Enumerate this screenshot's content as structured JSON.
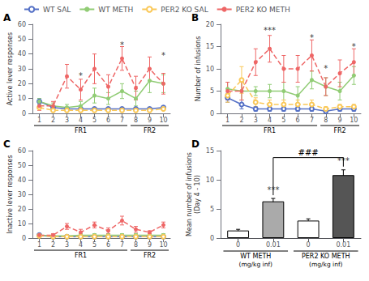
{
  "chart_data": [
    {
      "type": "line",
      "title": "A",
      "y_label": "Active lever responses",
      "x": [
        1,
        2,
        3,
        4,
        5,
        6,
        7,
        8,
        9,
        10
      ],
      "xlim": [
        0.5,
        10.5
      ],
      "xticks": [
        1,
        2,
        3,
        4,
        5,
        6,
        7,
        8,
        9,
        10
      ],
      "ylim": [
        0,
        60
      ],
      "yticks": [
        0,
        10,
        20,
        30,
        40,
        50,
        60
      ],
      "grid": false,
      "legend": "upper left",
      "series": [
        {
          "name": "WT SAL",
          "values": [
            8,
            4,
            3,
            3,
            3,
            3,
            3,
            3,
            3,
            4
          ],
          "errors": [
            2,
            1,
            1,
            1,
            1,
            1,
            1,
            1,
            1,
            1
          ],
          "marker": "emptyCircle",
          "line_style": "solid"
        },
        {
          "name": "WT METH",
          "values": [
            8,
            5,
            4,
            5,
            12,
            10,
            15,
            10,
            22,
            20
          ],
          "errors": [
            2,
            2,
            2,
            3,
            5,
            4,
            5,
            5,
            8,
            6
          ],
          "marker": "circle",
          "line_style": "solid"
        },
        {
          "name": "PER2 KO SAL",
          "values": [
            4,
            2,
            2,
            2,
            2,
            2,
            2,
            2,
            2,
            3
          ],
          "errors": [
            1,
            1,
            1,
            1,
            1,
            1,
            1,
            1,
            1,
            1
          ],
          "marker": "emptyCircle",
          "line_style": "dashed"
        },
        {
          "name": "PER2 KO METH",
          "values": [
            5,
            5,
            25,
            16,
            30,
            18,
            37,
            17,
            30,
            20
          ],
          "errors": [
            3,
            3,
            8,
            7,
            10,
            8,
            8,
            8,
            8,
            7
          ],
          "marker": "circle",
          "line_style": "dashed"
        }
      ],
      "annotations": [
        {
          "x": 4,
          "y": 22,
          "text": "*"
        },
        {
          "x": 7,
          "y": 43,
          "text": "*"
        },
        {
          "x": 10,
          "y": 36,
          "text": "*"
        }
      ],
      "x_groups": [
        {
          "label": "FR1",
          "from": 0.5,
          "to": 7.5
        },
        {
          "label": "FR2",
          "from": 7.5,
          "to": 10.5
        }
      ]
    },
    {
      "type": "line",
      "title": "B",
      "y_label": "Number of infusions",
      "x": [
        1,
        2,
        3,
        4,
        5,
        6,
        7,
        8,
        9,
        10
      ],
      "xlim": [
        0.5,
        10.5
      ],
      "xticks": [
        1,
        2,
        3,
        4,
        5,
        6,
        7,
        8,
        9,
        10
      ],
      "ylim": [
        0,
        20
      ],
      "yticks": [
        0,
        5,
        10,
        15,
        20
      ],
      "grid": false,
      "series": [
        {
          "name": "WT SAL",
          "values": [
            3.5,
            2,
            1,
            1,
            1,
            1,
            1,
            0.5,
            1,
            1
          ],
          "errors": [
            1,
            1,
            0.5,
            0.5,
            0.5,
            0.5,
            0.5,
            0.5,
            0.5,
            0.5
          ],
          "marker": "emptyCircle",
          "line_style": "solid"
        },
        {
          "name": "WT METH",
          "values": [
            5.5,
            5,
            5,
            5,
            5,
            4,
            7.5,
            6,
            5,
            8.5
          ],
          "errors": [
            1.5,
            2,
            1,
            1.5,
            2,
            2,
            2,
            2,
            2,
            2
          ],
          "marker": "circle",
          "line_style": "solid"
        },
        {
          "name": "PER2 KO SAL",
          "values": [
            4,
            7.5,
            2.5,
            2,
            2,
            2,
            2,
            1,
            1.5,
            1.5
          ],
          "errors": [
            1.5,
            3,
            1,
            1,
            1,
            1,
            1,
            0.5,
            0.5,
            0.5
          ],
          "marker": "emptyCircle",
          "line_style": "dashed"
        },
        {
          "name": "PER2 KO METH",
          "values": [
            5,
            5,
            11.5,
            14.5,
            10,
            10,
            13,
            6,
            9,
            11.5
          ],
          "errors": [
            2,
            2,
            3,
            3,
            3,
            3,
            3.5,
            2,
            3,
            3
          ],
          "marker": "circle",
          "line_style": "dashed"
        }
      ],
      "annotations": [
        {
          "x": 4,
          "y": 17.5,
          "text": "***"
        },
        {
          "x": 7,
          "y": 16,
          "text": "*"
        },
        {
          "x": 8,
          "y": 9,
          "text": "*"
        },
        {
          "x": 10,
          "y": 14,
          "text": "*"
        }
      ],
      "x_groups": [
        {
          "label": "FR1",
          "from": 0.5,
          "to": 7.5
        },
        {
          "label": "FR2",
          "from": 7.5,
          "to": 10.5
        }
      ]
    },
    {
      "type": "line",
      "title": "C",
      "y_label": "Inactive lever responses",
      "x": [
        1,
        2,
        3,
        4,
        5,
        6,
        7,
        8,
        9,
        10
      ],
      "xlim": [
        0.5,
        10.5
      ],
      "xticks": [
        1,
        2,
        3,
        4,
        5,
        6,
        7,
        8,
        9,
        10
      ],
      "ylim": [
        0,
        60
      ],
      "yticks": [
        0,
        10,
        20,
        30,
        40,
        50,
        60
      ],
      "grid": false,
      "series": [
        {
          "name": "WT SAL",
          "values": [
            2,
            1,
            1,
            1,
            1,
            1,
            1,
            1,
            1,
            1
          ],
          "errors": [
            0.5,
            0.5,
            0.5,
            0.5,
            0.5,
            0.5,
            0.5,
            0.5,
            0.5,
            0.5
          ],
          "marker": "emptyCircle",
          "line_style": "solid"
        },
        {
          "name": "WT METH",
          "values": [
            2,
            1.5,
            1.5,
            2,
            2,
            2,
            2,
            2,
            2,
            2
          ],
          "errors": [
            0.5,
            0.5,
            0.5,
            1,
            1,
            1,
            1,
            1,
            1,
            1
          ],
          "marker": "circle",
          "line_style": "solid"
        },
        {
          "name": "PER2 KO SAL",
          "values": [
            1.5,
            1,
            1,
            1,
            1,
            1,
            1,
            1,
            1,
            1
          ],
          "errors": [
            0.5,
            0.5,
            0.5,
            0.5,
            0.5,
            0.5,
            0.5,
            0.5,
            0.5,
            0.5
          ],
          "marker": "emptyCircle",
          "line_style": "dashed"
        },
        {
          "name": "PER2 KO METH",
          "values": [
            2,
            2,
            8,
            4,
            9,
            5,
            12,
            6,
            4,
            9
          ],
          "errors": [
            1,
            1,
            2,
            2,
            2,
            2,
            3,
            2,
            1,
            2
          ],
          "marker": "circle",
          "line_style": "dashed"
        }
      ],
      "x_groups": [
        {
          "label": "FR1",
          "from": 0.5,
          "to": 7.5
        },
        {
          "label": "FR2",
          "from": 7.5,
          "to": 10.5
        }
      ]
    },
    {
      "type": "bar",
      "title": "D",
      "y_label": "Mean number of infusions\n(Day 4 - 10)",
      "categories": [
        "0",
        "0.01",
        "0",
        "0.01"
      ],
      "values": [
        1.3,
        6.3,
        3.0,
        10.8
      ],
      "errors": [
        0.2,
        0.5,
        0.3,
        0.9
      ],
      "colors": [
        "white",
        "#aaaaaa",
        "white",
        "#555555"
      ],
      "ylim": [
        0,
        15
      ],
      "yticks": [
        0,
        5,
        10,
        15
      ],
      "grid": false,
      "annotations": [
        {
          "category": 1,
          "y": 7.5,
          "text": "***"
        },
        {
          "category": 3,
          "y": 12.5,
          "text": "***"
        }
      ],
      "bracket": {
        "from": 1,
        "to": 3,
        "y": 13.8,
        "text": "###"
      },
      "x_groups": [
        {
          "label": "WT METH",
          "sublabel": "(mg/kg inf)",
          "size": 2
        },
        {
          "label": "PER2 KO METH",
          "sublabel": "(mg/kg inf)",
          "size": 2
        }
      ]
    }
  ]
}
